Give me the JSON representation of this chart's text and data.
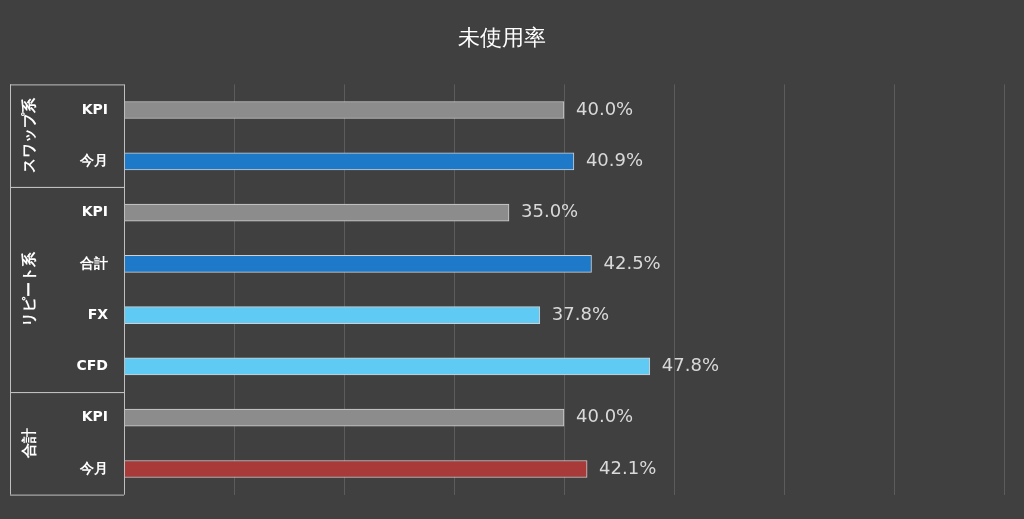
{
  "chart_data": {
    "type": "bar",
    "orientation": "horizontal",
    "title": "未使用率",
    "categories": [
      "KPI",
      "今月",
      "KPI",
      "合計",
      "FX",
      "CFD",
      "KPI",
      "今月"
    ],
    "values": [
      40.0,
      40.9,
      35.0,
      42.5,
      37.8,
      47.8,
      40.0,
      42.1
    ],
    "value_labels": [
      "40.0%",
      "40.9%",
      "35.0%",
      "42.5%",
      "37.8%",
      "47.8%",
      "40.0%",
      "42.1%"
    ],
    "colors": [
      "#8c8c8c",
      "#1e7ac8",
      "#8c8c8c",
      "#1e7ac8",
      "#5fcbf5",
      "#5fcbf5",
      "#8c8c8c",
      "#a83a3a"
    ],
    "annotations": [
      "スワップ系",
      "リピート系",
      "合計"
    ],
    "xlim": [
      0,
      80
    ],
    "xticks": [
      {
        "value": 0,
        "label": null
      },
      {
        "value": 10,
        "label": null
      },
      {
        "value": 20,
        "label": null
      },
      {
        "value": 30,
        "label": null
      },
      {
        "value": 40,
        "label": null
      },
      {
        "value": 50,
        "label": null
      },
      {
        "value": 60,
        "label": null
      },
      {
        "value": 70,
        "label": null
      },
      {
        "value": 80,
        "label": null
      }
    ],
    "grid": "x",
    "tick_labels": "y",
    "legend": false
  }
}
